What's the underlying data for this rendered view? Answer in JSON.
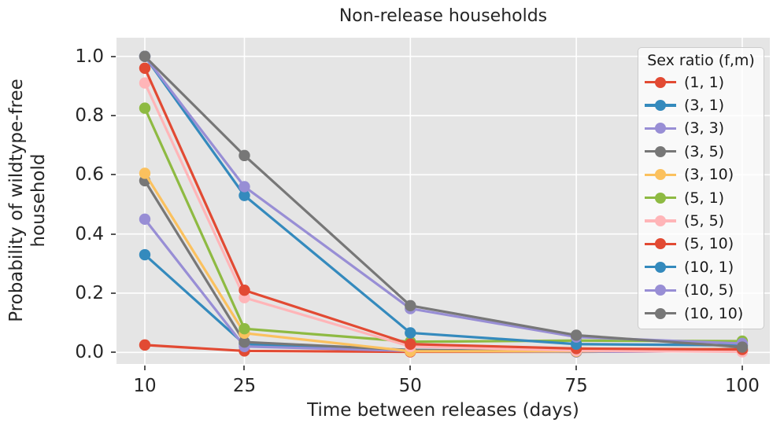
{
  "chart_data": {
    "type": "line",
    "title": "Non-release households",
    "xlabel": "Time between releases (days)",
    "ylabel": "Probability of wildtype-free\nhousehold",
    "x": [
      10,
      25,
      50,
      75,
      100
    ],
    "x_tick_labels": [
      "10",
      "25",
      "50",
      "75",
      "100"
    ],
    "y_ticks": [
      0.0,
      0.2,
      0.4,
      0.6,
      0.8,
      1.0
    ],
    "y_tick_labels": [
      "0.0",
      "0.2",
      "0.4",
      "0.6",
      "0.8",
      "1.0"
    ],
    "xlim": [
      5.7,
      104.2
    ],
    "ylim": [
      -0.04,
      1.065
    ],
    "grid": true,
    "plot_bg_color": "#E5E5E5",
    "grid_color": "#FFFFFF",
    "legend": {
      "title": "Sex ratio (f,m)",
      "position": "upper right"
    },
    "series": [
      {
        "name": "(1, 1)",
        "color": "#E24A33",
        "values": [
          0.025,
          0.005,
          0.002,
          0.002,
          0.005
        ]
      },
      {
        "name": "(3, 1)",
        "color": "#348ABD",
        "values": [
          0.33,
          0.028,
          0.008,
          0.004,
          0.008
        ]
      },
      {
        "name": "(3, 3)",
        "color": "#988ED5",
        "values": [
          0.45,
          0.02,
          0.005,
          0.002,
          0.005
        ]
      },
      {
        "name": "(3, 5)",
        "color": "#777777",
        "values": [
          0.58,
          0.035,
          0.008,
          0.003,
          0.012
        ]
      },
      {
        "name": "(3, 10)",
        "color": "#FBC15E",
        "values": [
          0.605,
          0.065,
          0.004,
          0.004,
          0.008
        ]
      },
      {
        "name": "(5, 1)",
        "color": "#8EBA42",
        "values": [
          0.825,
          0.08,
          0.036,
          0.04,
          0.038
        ]
      },
      {
        "name": "(5, 5)",
        "color": "#FFB5B8",
        "values": [
          0.91,
          0.185,
          0.02,
          0.006,
          0.002
        ]
      },
      {
        "name": "(5, 10)",
        "color": "#E24A33",
        "values": [
          0.96,
          0.21,
          0.028,
          0.013,
          0.01
        ]
      },
      {
        "name": "(10, 1)",
        "color": "#348ABD",
        "values": [
          1.0,
          0.53,
          0.066,
          0.028,
          0.024
        ]
      },
      {
        "name": "(10, 5)",
        "color": "#988ED5",
        "values": [
          1.0,
          0.56,
          0.148,
          0.052,
          0.03
        ]
      },
      {
        "name": "(10, 10)",
        "color": "#777777",
        "values": [
          1.0,
          0.665,
          0.158,
          0.058,
          0.018
        ]
      }
    ]
  }
}
